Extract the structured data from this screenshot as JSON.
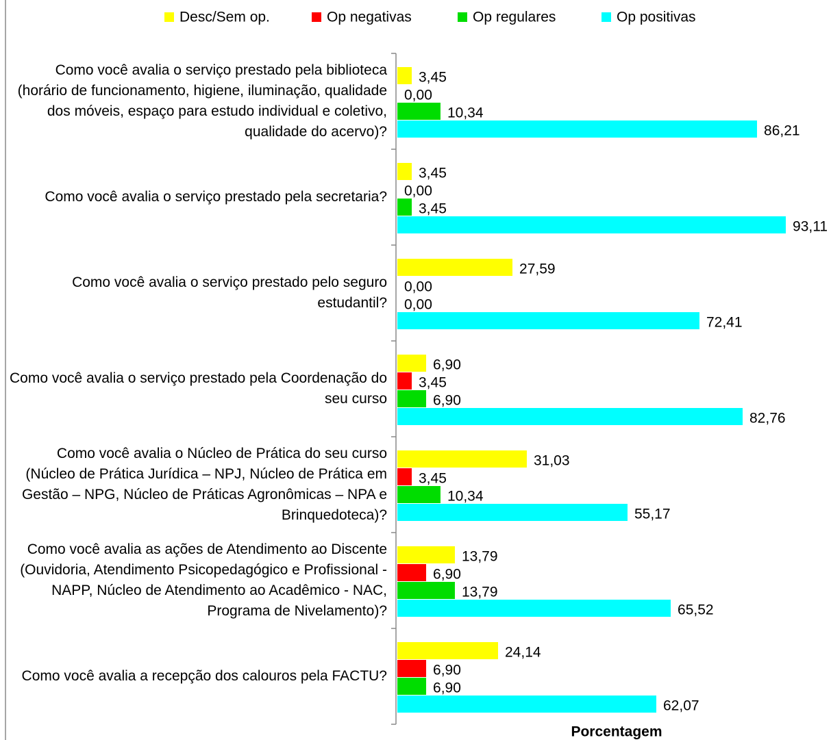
{
  "chart_data": {
    "type": "bar",
    "orientation": "horizontal",
    "x_label": "Porcentagem",
    "categories": [
      "Como você avalia o serviço prestado pela biblioteca (horário de funcionamento, higiene, iluminação, qualidade dos móveis, espaço para estudo individual e coletivo, qualidade do acervo)?",
      "Como você avalia o serviço prestado pela secretaria?",
      "Como você avalia o serviço prestado pelo seguro estudantil?",
      "Como você avalia o serviço prestado pela Coordenação do seu curso",
      "Como você avalia o Núcleo de Prática do seu curso (Núcleo de Prática Jurídica – NPJ, Núcleo de Prática em Gestão – NPG, Núcleo de Práticas Agronômicas – NPA e Brinquedoteca)?",
      "Como você avalia as ações de Atendimento ao Discente (Ouvidoria, Atendimento Psicopedagógico e Profissional - NAPP, Núcleo de Atendimento ao Acadêmico - NAC, Programa de Nivelamento)?",
      "Como você avalia a recepção dos calouros pela FACTU?"
    ],
    "series": [
      {
        "name": "Desc/Sem op.",
        "color": "#ffff00",
        "values": [
          3.45,
          3.45,
          27.59,
          6.9,
          31.03,
          13.79,
          24.14
        ],
        "value_labels": [
          "3,45",
          "3,45",
          "27,59",
          "6,90",
          "31,03",
          "13,79",
          "24,14"
        ]
      },
      {
        "name": "Op negativas",
        "color": "#ff0000",
        "values": [
          0,
          0,
          0,
          3.45,
          3.45,
          6.9,
          6.9
        ],
        "value_labels": [
          "0,00",
          "0,00",
          "0,00",
          "3,45",
          "3,45",
          "6,90",
          "6,90"
        ]
      },
      {
        "name": "Op regulares",
        "color": "#00dd00",
        "values": [
          10.34,
          3.45,
          0,
          6.9,
          10.34,
          13.79,
          6.9
        ],
        "value_labels": [
          "10,34",
          "3,45",
          "0,00",
          "6,90",
          "10,34",
          "13,79",
          "6,90"
        ]
      },
      {
        "name": "Op positivas",
        "color": "#00ffff",
        "values": [
          86.21,
          93.11,
          72.41,
          82.76,
          55.17,
          65.52,
          62.07
        ],
        "value_labels": [
          "86,21",
          "93,11",
          "72,41",
          "82,76",
          "55,17",
          "65,52",
          "62,07"
        ]
      }
    ]
  }
}
